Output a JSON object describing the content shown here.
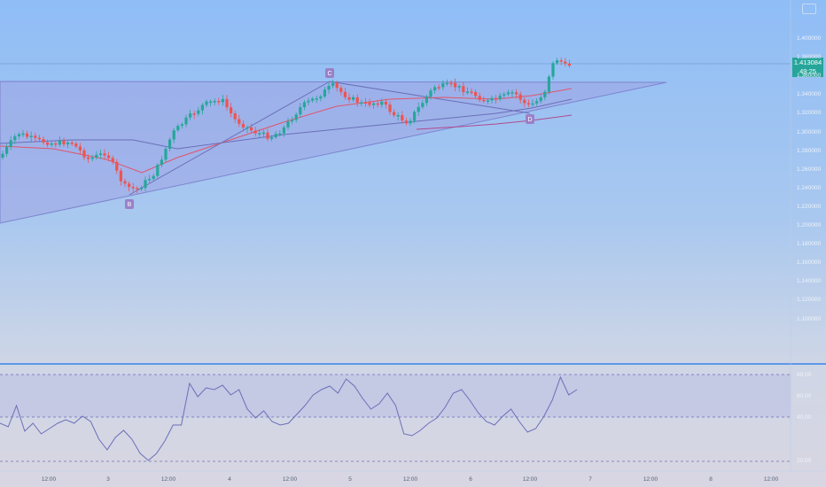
{
  "header": {
    "menu_icon": "window-icon"
  },
  "price": {
    "current": "1.413084",
    "countdown": "49:25",
    "accent": "#26a69a",
    "axis_labels": [
      "1.400000",
      "1.380000",
      "1.360000",
      "1.340000",
      "1.320000",
      "1.300000",
      "1.280000",
      "1.260000",
      "1.240000",
      "1.220000",
      "1.200000",
      "1.180000",
      "1.160000",
      "1.140000",
      "1.120000",
      "1.100000"
    ]
  },
  "oscillator": {
    "axis_labels": [
      "80.00",
      "60.00",
      "40.00",
      "20.00"
    ]
  },
  "time_axis": {
    "labels": [
      "12:00",
      "3",
      "12:00",
      "4",
      "12:00",
      "5",
      "12:00",
      "6",
      "12:00",
      "7",
      "12:00",
      "8",
      "12:00"
    ]
  },
  "pattern_labels": [
    "C",
    "B",
    "D"
  ],
  "colors": {
    "up": "#26a69a",
    "down": "#ef5350",
    "triangle": "#9fa4e3",
    "ma_red": "#e0556a",
    "ma_purple": "#b04a8c",
    "osc_line": "#6b6fb8"
  }
}
